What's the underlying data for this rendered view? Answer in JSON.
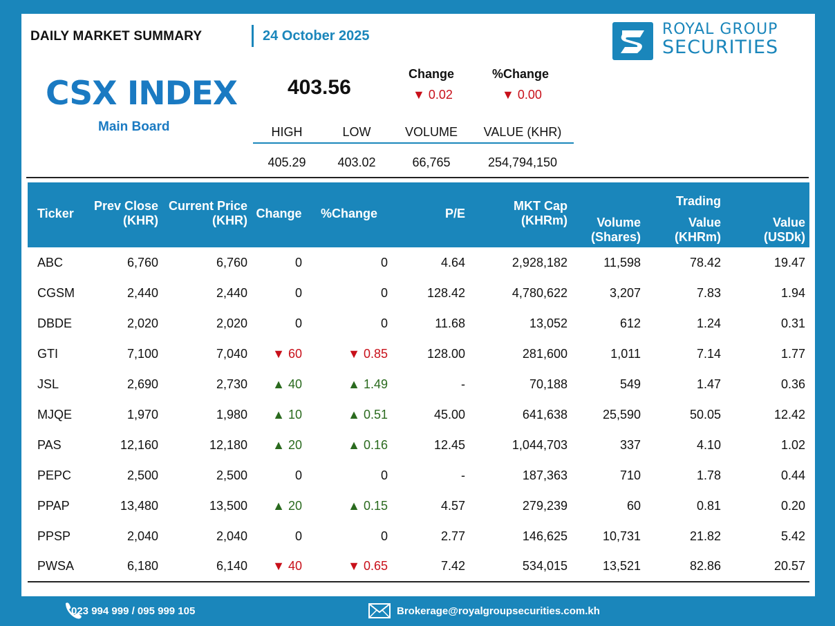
{
  "header": {
    "title": "DAILY MARKET SUMMARY",
    "date": "24 October 2025"
  },
  "brand": {
    "line1": "ROYAL GROUP",
    "line2": "SECURITIES",
    "color": "#1a86bb"
  },
  "index": {
    "name": "CSX INDEX",
    "board": "Main Board",
    "value": "403.56",
    "change_label": "Change",
    "change_value": "0.02",
    "pct_change_label": "%Change",
    "pct_change_value": "0.00",
    "stats_headers": [
      "HIGH",
      "LOW",
      "VOLUME",
      "VALUE (KHR)"
    ],
    "stats_values": [
      "405.29",
      "403.02",
      "66,765",
      "254,794,150"
    ]
  },
  "table": {
    "headers": {
      "ticker": "Ticker",
      "prev_close_1": "Prev Close",
      "prev_close_2": "(KHR)",
      "current_price_1": "Current Price",
      "current_price_2": "(KHR)",
      "change": "Change",
      "pct_change": "%Change",
      "pe": "P/E",
      "mkt_cap_1": "MKT Cap",
      "mkt_cap_2": "(KHRm)",
      "volume_1": "Volume",
      "volume_2": "(Shares)",
      "trading": "Trading",
      "value_khr_1": "Value",
      "value_khr_2": "(KHRm)",
      "value_usd_1": "Value",
      "value_usd_2": "(USDk)"
    },
    "rows": [
      {
        "ticker": "ABC",
        "prev": "6,760",
        "cur": "6,760",
        "dir": "none",
        "chg": "0",
        "pct": "0",
        "pe": "4.64",
        "mcap": "2,928,182",
        "vol": "11,598",
        "vkhr": "78.42",
        "vusd": "19.47"
      },
      {
        "ticker": "CGSM",
        "prev": "2,440",
        "cur": "2,440",
        "dir": "none",
        "chg": "0",
        "pct": "0",
        "pe": "128.42",
        "mcap": "4,780,622",
        "vol": "3,207",
        "vkhr": "7.83",
        "vusd": "1.94"
      },
      {
        "ticker": "DBDE",
        "prev": "2,020",
        "cur": "2,020",
        "dir": "none",
        "chg": "0",
        "pct": "0",
        "pe": "11.68",
        "mcap": "13,052",
        "vol": "612",
        "vkhr": "1.24",
        "vusd": "0.31"
      },
      {
        "ticker": "GTI",
        "prev": "7,100",
        "cur": "7,040",
        "dir": "down",
        "chg": "60",
        "pct": "0.85",
        "pe": "128.00",
        "mcap": "281,600",
        "vol": "1,011",
        "vkhr": "7.14",
        "vusd": "1.77"
      },
      {
        "ticker": "JSL",
        "prev": "2,690",
        "cur": "2,730",
        "dir": "up",
        "chg": "40",
        "pct": "1.49",
        "pe": "-",
        "mcap": "70,188",
        "vol": "549",
        "vkhr": "1.47",
        "vusd": "0.36"
      },
      {
        "ticker": "MJQE",
        "prev": "1,970",
        "cur": "1,980",
        "dir": "up",
        "chg": "10",
        "pct": "0.51",
        "pe": "45.00",
        "mcap": "641,638",
        "vol": "25,590",
        "vkhr": "50.05",
        "vusd": "12.42"
      },
      {
        "ticker": "PAS",
        "prev": "12,160",
        "cur": "12,180",
        "dir": "up",
        "chg": "20",
        "pct": "0.16",
        "pe": "12.45",
        "mcap": "1,044,703",
        "vol": "337",
        "vkhr": "4.10",
        "vusd": "1.02"
      },
      {
        "ticker": "PEPC",
        "prev": "2,500",
        "cur": "2,500",
        "dir": "none",
        "chg": "0",
        "pct": "0",
        "pe": "-",
        "mcap": "187,363",
        "vol": "710",
        "vkhr": "1.78",
        "vusd": "0.44"
      },
      {
        "ticker": "PPAP",
        "prev": "13,480",
        "cur": "13,500",
        "dir": "up",
        "chg": "20",
        "pct": "0.15",
        "pe": "4.57",
        "mcap": "279,239",
        "vol": "60",
        "vkhr": "0.81",
        "vusd": "0.20"
      },
      {
        "ticker": "PPSP",
        "prev": "2,040",
        "cur": "2,040",
        "dir": "none",
        "chg": "0",
        "pct": "0",
        "pe": "2.77",
        "mcap": "146,625",
        "vol": "10,731",
        "vkhr": "21.82",
        "vusd": "5.42"
      },
      {
        "ticker": "PWSA",
        "prev": "6,180",
        "cur": "6,140",
        "dir": "down",
        "chg": "40",
        "pct": "0.65",
        "pe": "7.42",
        "mcap": "534,015",
        "vol": "13,521",
        "vkhr": "82.86",
        "vusd": "20.57"
      }
    ]
  },
  "footer": {
    "phone": "023 994 999 / 095 999 105",
    "email": "Brokerage@royalgroupsecurities.com.kh"
  },
  "colors": {
    "up": "#2a6a1e",
    "down": "#c8101a",
    "accent": "#1a86bb"
  },
  "icons": {
    "phone": "phone-icon",
    "mail": "mail-icon",
    "logo": "logo-mark-icon",
    "up": "triangle-up-icon",
    "down": "triangle-down-icon"
  }
}
